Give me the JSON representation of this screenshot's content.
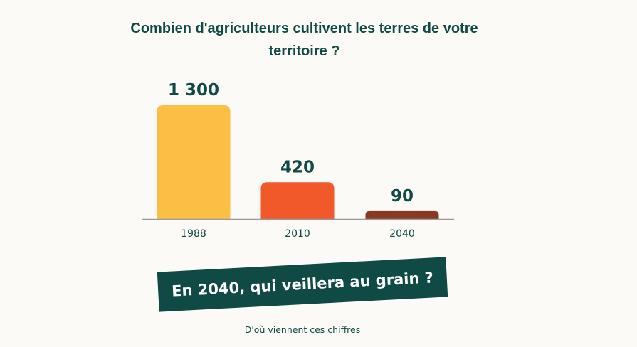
{
  "title": "Combien d'agriculteurs cultivent les terres de votre territoire ?",
  "chart_data": {
    "type": "bar",
    "categories": [
      "1988",
      "2010",
      "2040"
    ],
    "values": [
      1300,
      420,
      90
    ],
    "value_labels": [
      "1 300",
      "420",
      "90"
    ],
    "colors": [
      "#fbbf45",
      "#f2592a",
      "#8a3a22"
    ],
    "title": "Combien d'agriculteurs cultivent les terres de votre territoire ?",
    "xlabel": "",
    "ylabel": "",
    "ylim": [
      0,
      1300
    ],
    "grid": false,
    "legend": "none"
  },
  "banner": {
    "text": "En 2040, qui veillera au grain ?"
  },
  "source_link": {
    "text": "D'où viennent ces chiffres"
  },
  "colors": {
    "text": "#0f4a44",
    "axis": "#9a9a9a",
    "background": "#fbfaf7"
  }
}
